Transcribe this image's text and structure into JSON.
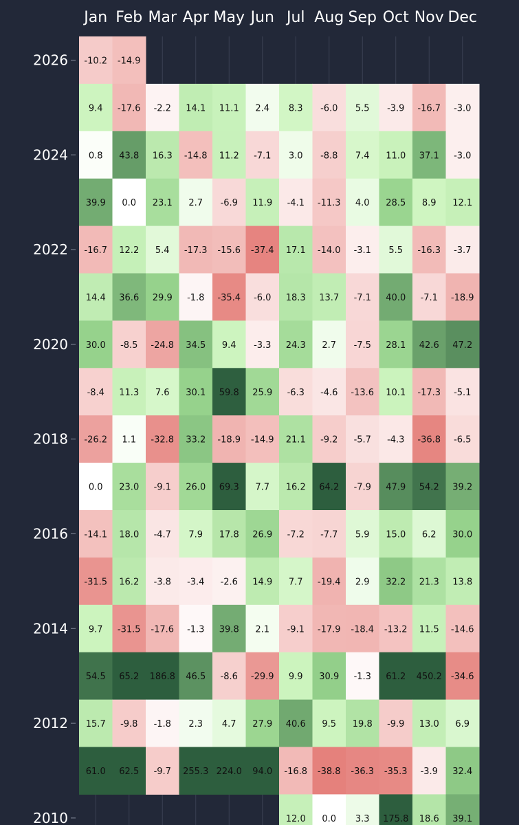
{
  "chart_data": {
    "type": "heatmap",
    "title": "",
    "xlabel": "",
    "ylabel": "",
    "months": [
      "Jan",
      "Feb",
      "Mar",
      "Apr",
      "May",
      "Jun",
      "Jul",
      "Aug",
      "Sep",
      "Oct",
      "Nov",
      "Dec"
    ],
    "year_ticks": [
      "2026",
      "2024",
      "2022",
      "2020",
      "2018",
      "2016",
      "2014",
      "2012",
      "2010"
    ],
    "rows": [
      {
        "year": 2026,
        "values": [
          "-10.2",
          "-14.9",
          null,
          null,
          null,
          null,
          null,
          null,
          null,
          null,
          null,
          null
        ]
      },
      {
        "year": 2025,
        "values": [
          "9.4",
          "-17.6",
          "-2.2",
          "14.1",
          "11.1",
          "2.4",
          "8.3",
          "-6.0",
          "5.5",
          "-3.9",
          "-16.7",
          "-3.0"
        ]
      },
      {
        "year": 2024,
        "values": [
          "0.8",
          "43.8",
          "16.3",
          "-14.8",
          "11.2",
          "-7.1",
          "3.0",
          "-8.8",
          "7.4",
          "11.0",
          "37.1",
          "-3.0"
        ]
      },
      {
        "year": 2023,
        "values": [
          "39.9",
          "0.0",
          "23.1",
          "2.7",
          "-6.9",
          "11.9",
          "-4.1",
          "-11.3",
          "4.0",
          "28.5",
          "8.9",
          "12.1"
        ]
      },
      {
        "year": 2022,
        "values": [
          "-16.7",
          "12.2",
          "5.4",
          "-17.3",
          "-15.6",
          "-37.4",
          "17.1",
          "-14.0",
          "-3.1",
          "5.5",
          "-16.3",
          "-3.7"
        ]
      },
      {
        "year": 2021,
        "values": [
          "14.4",
          "36.6",
          "29.9",
          "-1.8",
          "-35.4",
          "-6.0",
          "18.3",
          "13.7",
          "-7.1",
          "40.0",
          "-7.1",
          "-18.9"
        ]
      },
      {
        "year": 2020,
        "values": [
          "30.0",
          "-8.5",
          "-24.8",
          "34.5",
          "9.4",
          "-3.3",
          "24.3",
          "2.7",
          "-7.5",
          "28.1",
          "42.6",
          "47.2"
        ]
      },
      {
        "year": 2019,
        "values": [
          "-8.4",
          "11.3",
          "7.6",
          "30.1",
          "59.8",
          "25.9",
          "-6.3",
          "-4.6",
          "-13.6",
          "10.1",
          "-17.3",
          "-5.1"
        ]
      },
      {
        "year": 2018,
        "values": [
          "-26.2",
          "1.1",
          "-32.8",
          "33.2",
          "-18.9",
          "-14.9",
          "21.1",
          "-9.2",
          "-5.7",
          "-4.3",
          "-36.8",
          "-6.5"
        ]
      },
      {
        "year": 2017,
        "values": [
          "0.0",
          "23.0",
          "-9.1",
          "26.0",
          "69.3",
          "7.7",
          "16.2",
          "64.2",
          "-7.9",
          "47.9",
          "54.2",
          "39.2"
        ]
      },
      {
        "year": 2016,
        "values": [
          "-14.1",
          "18.0",
          "-4.7",
          "7.9",
          "17.8",
          "26.9",
          "-7.2",
          "-7.7",
          "5.9",
          "15.0",
          "6.2",
          "30.0"
        ]
      },
      {
        "year": 2015,
        "values": [
          "-31.5",
          "16.2",
          "-3.8",
          "-3.4",
          "-2.6",
          "14.9",
          "7.7",
          "-19.4",
          "2.9",
          "32.2",
          "21.3",
          "13.8"
        ]
      },
      {
        "year": 2014,
        "values": [
          "9.7",
          "-31.5",
          "-17.6",
          "-1.3",
          "39.8",
          "2.1",
          "-9.1",
          "-17.9",
          "-18.4",
          "-13.2",
          "11.5",
          "-14.6"
        ]
      },
      {
        "year": 2013,
        "values": [
          "54.5",
          "65.2",
          "186.8",
          "46.5",
          "-8.6",
          "-29.9",
          "9.9",
          "30.9",
          "-1.3",
          "61.2",
          "450.2",
          "-34.6"
        ]
      },
      {
        "year": 2012,
        "values": [
          "15.7",
          "-9.8",
          "-1.8",
          "2.3",
          "4.7",
          "27.9",
          "40.6",
          "9.5",
          "19.8",
          "-9.9",
          "13.0",
          "6.9"
        ]
      },
      {
        "year": 2011,
        "values": [
          "61.0",
          "62.5",
          "-9.7",
          "255.3",
          "224.0",
          "94.0",
          "-16.8",
          "-38.8",
          "-36.3",
          "-35.3",
          "-3.9",
          "32.4"
        ]
      },
      {
        "year": 2010,
        "values": [
          null,
          null,
          null,
          null,
          null,
          null,
          "12.0",
          "0.0",
          "3.3",
          "175.8",
          "18.6",
          "39.1"
        ]
      }
    ],
    "color_scale": {
      "negative_max": "#d94a43",
      "zero": "#ffffff",
      "positive_max": "#2d5e3e",
      "clip_abs": 60
    }
  }
}
